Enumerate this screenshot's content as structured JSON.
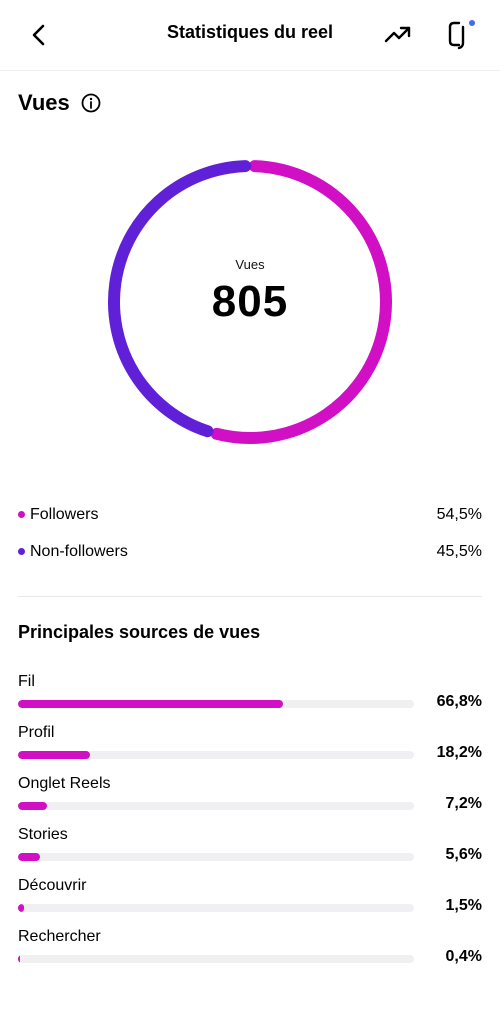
{
  "header": {
    "title": "Statistiques du reel"
  },
  "views": {
    "section_title": "Vues",
    "center_label": "Vues",
    "total": "805",
    "legend": [
      {
        "name": "Followers",
        "percent_label": "54,5%",
        "value": 54.5,
        "color": "#d10fc4"
      },
      {
        "name": "Non-followers",
        "percent_label": "45,5%",
        "value": 45.5,
        "color": "#6020d8"
      }
    ]
  },
  "sources": {
    "title": "Principales sources de vues",
    "items": [
      {
        "label": "Fil",
        "percent_label": "66,8%",
        "value": 66.8
      },
      {
        "label": "Profil",
        "percent_label": "18,2%",
        "value": 18.2
      },
      {
        "label": "Onglet Reels",
        "percent_label": "7,2%",
        "value": 7.2
      },
      {
        "label": "Stories",
        "percent_label": "5,6%",
        "value": 5.6
      },
      {
        "label": "Découvrir",
        "percent_label": "1,5%",
        "value": 1.5
      },
      {
        "label": "Rechercher",
        "percent_label": "0,4%",
        "value": 0.4
      }
    ]
  },
  "colors": {
    "accent": "#d10fc4",
    "secondary": "#6020d8",
    "track": "#f0f0f3"
  },
  "icons": {
    "back": "chevron-left-icon",
    "trend": "trending-up-icon",
    "crop": "crop-icon",
    "info": "info-icon"
  }
}
